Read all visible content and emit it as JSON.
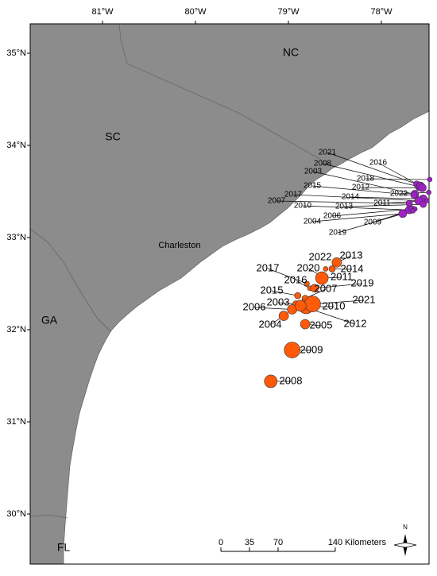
{
  "map": {
    "lon_ticks": [
      {
        "value": -81,
        "label": "81°W"
      },
      {
        "value": -80,
        "label": "80°W"
      },
      {
        "value": -79,
        "label": "79°W"
      },
      {
        "value": -78,
        "label": "78°W"
      }
    ],
    "lat_ticks": [
      {
        "value": 35,
        "label": "35°N"
      },
      {
        "value": 34,
        "label": "34°N"
      },
      {
        "value": 33,
        "label": "33°N"
      },
      {
        "value": 32,
        "label": "32°N"
      },
      {
        "value": 31,
        "label": "31°N"
      },
      {
        "value": 30,
        "label": "30°N"
      }
    ],
    "state_labels": [
      "NC",
      "SC",
      "GA",
      "FL"
    ],
    "city_label": "Charleston",
    "inshore_color": "#a020c8",
    "offshore_color": "#ff5a0a",
    "inshore_points": [
      {
        "year": "2021",
        "lon": -77.62,
        "lat": 33.58,
        "size": 4
      },
      {
        "year": "2008",
        "lon": -77.59,
        "lat": 33.55,
        "size": 5
      },
      {
        "year": "2016",
        "lon": -77.58,
        "lat": 33.56,
        "size": 5
      },
      {
        "year": "2018",
        "lon": -77.48,
        "lat": 33.63,
        "size": 3
      },
      {
        "year": "2012",
        "lon": -77.56,
        "lat": 33.54,
        "size": 5
      },
      {
        "year": "2022",
        "lon": -77.49,
        "lat": 33.49,
        "size": 3
      },
      {
        "year": "2003",
        "lon": -77.64,
        "lat": 33.47,
        "size": 5
      },
      {
        "year": "2015",
        "lon": -77.65,
        "lat": 33.46,
        "size": 4
      },
      {
        "year": "2014",
        "lon": -77.55,
        "lat": 33.42,
        "size": 5
      },
      {
        "year": "2011",
        "lon": -77.51,
        "lat": 33.4,
        "size": 3
      },
      {
        "year": "2017",
        "lon": -77.6,
        "lat": 33.4,
        "size": 5
      },
      {
        "year": "2007",
        "lon": -77.7,
        "lat": 33.37,
        "size": 4
      },
      {
        "year": "2013",
        "lon": -77.55,
        "lat": 33.36,
        "size": 4
      },
      {
        "year": "2010",
        "lon": -77.7,
        "lat": 33.3,
        "size": 5
      },
      {
        "year": "2006",
        "lon": -77.67,
        "lat": 33.31,
        "size": 4
      },
      {
        "year": "2009",
        "lon": -77.64,
        "lat": 33.31,
        "size": 3
      },
      {
        "year": "2004",
        "lon": -77.77,
        "lat": 33.26,
        "size": 5
      },
      {
        "year": "2019",
        "lon": -77.66,
        "lat": 33.29,
        "size": 3
      }
    ],
    "offshore_points": [
      {
        "year": "2013",
        "lon": -78.48,
        "lat": 32.73,
        "size": 6
      },
      {
        "year": "2022",
        "lon": -78.6,
        "lat": 32.66,
        "size": 3
      },
      {
        "year": "2014",
        "lon": -78.53,
        "lat": 32.66,
        "size": 4
      },
      {
        "year": "2020",
        "lon": -78.64,
        "lat": 32.58,
        "size": 3
      },
      {
        "year": "2011",
        "lon": -78.64,
        "lat": 32.56,
        "size": 8
      },
      {
        "year": "2017",
        "lon": -78.8,
        "lat": 32.5,
        "size": 3
      },
      {
        "year": "2016",
        "lon": -78.77,
        "lat": 32.45,
        "size": 3
      },
      {
        "year": "2019",
        "lon": -78.72,
        "lat": 32.45,
        "size": 5
      },
      {
        "year": "2015",
        "lon": -78.9,
        "lat": 32.37,
        "size": 4
      },
      {
        "year": "2007",
        "lon": -78.82,
        "lat": 32.34,
        "size": 4
      },
      {
        "year": "2003",
        "lon": -78.92,
        "lat": 32.28,
        "size": 4
      },
      {
        "year": "2006",
        "lon": -78.96,
        "lat": 32.22,
        "size": 6
      },
      {
        "year": "2010",
        "lon": -78.81,
        "lat": 32.25,
        "size": 9
      },
      {
        "year": "2021",
        "lon": -78.74,
        "lat": 32.28,
        "size": 10
      },
      {
        "year": "2012",
        "lon": -78.87,
        "lat": 32.26,
        "size": 7
      },
      {
        "year": "2004",
        "lon": -79.05,
        "lat": 32.15,
        "size": 6
      },
      {
        "year": "2005",
        "lon": -78.82,
        "lat": 32.06,
        "size": 6
      },
      {
        "year": "2009",
        "lon": -78.96,
        "lat": 31.78,
        "size": 10
      },
      {
        "year": "2008",
        "lon": -79.19,
        "lat": 31.44,
        "size": 8
      }
    ],
    "scale_bar": {
      "ticks": [
        {
          "value": 0,
          "label": "0"
        },
        {
          "value": 35,
          "label": "35"
        },
        {
          "value": 70,
          "label": "70"
        },
        {
          "value": 140,
          "label": "140"
        }
      ],
      "unit": "Kilometers"
    },
    "north_label": "N"
  }
}
